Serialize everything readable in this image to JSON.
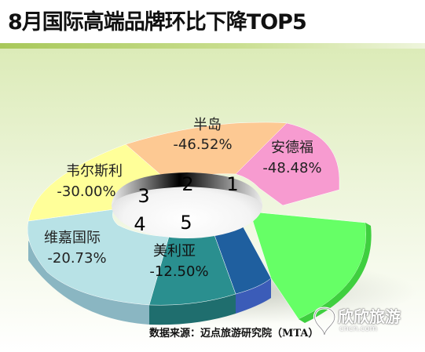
{
  "title": "8月国际高端品牌环比下降TOP5",
  "source": "数据来源：迈点旅游研究院（MTA）",
  "watermark": {
    "text": "欣欣旅游",
    "sub": "cncn.com"
  },
  "colors": {
    "title_bar": "#a8c85a",
    "background": "#e4f0c8"
  },
  "chart_data": {
    "type": "pie",
    "style": "3d-donut",
    "slices": [
      {
        "name": "半岛",
        "value": "-46.52%",
        "rank": "2",
        "color": "#fdc993"
      },
      {
        "name": "安德福",
        "value": "-48.48%",
        "rank": "1",
        "color": "#f79bd0"
      },
      {
        "name": "",
        "value": "",
        "rank": "",
        "color": "#66ff66"
      },
      {
        "name": "",
        "value": "",
        "rank": "",
        "color": "#1f5f9f"
      },
      {
        "name": "美利亚",
        "value": "-12.50%",
        "rank": "5",
        "color": "#2a8f8f"
      },
      {
        "name": "维嘉国际",
        "value": "-20.73%",
        "rank": "4",
        "color": "#b8e2e6"
      },
      {
        "name": "韦尔斯利",
        "value": "-30.00%",
        "rank": "3",
        "color": "#ffff99"
      }
    ]
  }
}
